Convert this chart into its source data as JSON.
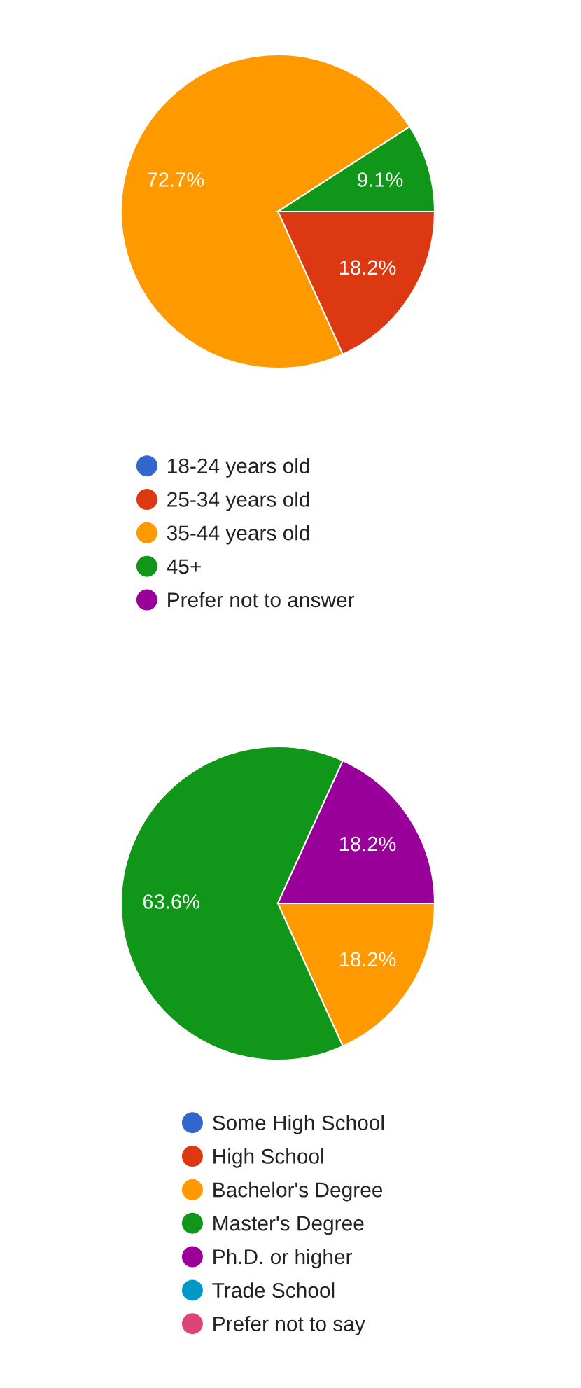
{
  "chart_data": [
    {
      "type": "pie",
      "categories": [
        "18-24 years old",
        "25-34 years old",
        "35-44 years old",
        "45+",
        "Prefer not to answer"
      ],
      "values": [
        0,
        18.2,
        72.7,
        9.1,
        0
      ],
      "colors": [
        "#3366cc",
        "#dc3912",
        "#ff9900",
        "#109618",
        "#990099"
      ],
      "value_labels": [
        null,
        "18.2%",
        "72.7%",
        "9.1%",
        null
      ],
      "legend": "bottom"
    },
    {
      "type": "pie",
      "categories": [
        "Some High School",
        "High School",
        "Bachelor's Degree",
        "Master's Degree",
        "Ph.D. or higher",
        "Trade School",
        "Prefer not to say"
      ],
      "values": [
        0,
        0,
        18.2,
        63.6,
        18.2,
        0,
        0
      ],
      "colors": [
        "#3366cc",
        "#dc3912",
        "#ff9900",
        "#109618",
        "#990099",
        "#0099c6",
        "#dd4477"
      ],
      "value_labels": [
        null,
        null,
        "18.2%",
        "63.6%",
        "18.2%",
        null,
        null
      ],
      "legend": "bottom"
    }
  ]
}
